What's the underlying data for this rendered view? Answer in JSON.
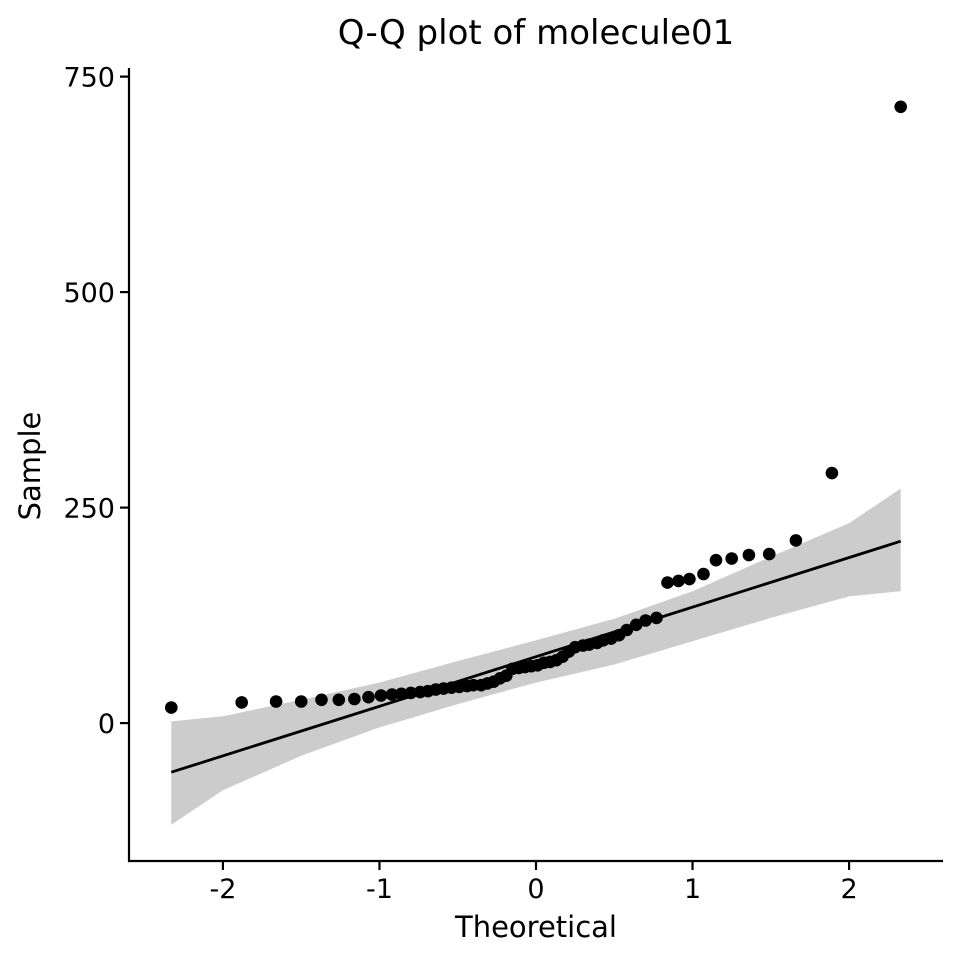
{
  "chart_data": {
    "type": "scatter",
    "title": "Q-Q plot of molecule01",
    "xlabel": "Theoretical",
    "ylabel": "Sample",
    "xlim": [
      -2.6,
      2.6
    ],
    "ylim": [
      -160,
      760
    ],
    "x_ticks": [
      -2,
      -1,
      0,
      1,
      2
    ],
    "x_tick_labels": [
      "-2",
      "-1",
      "0",
      "1",
      "2"
    ],
    "y_ticks": [
      0,
      250,
      500,
      750
    ],
    "y_tick_labels": [
      "0",
      "250",
      "500",
      "750"
    ],
    "grid": false,
    "legend": "none",
    "colors": {
      "points": "#000000",
      "line": "#000000",
      "band": "#cccccc",
      "axis": "#000000"
    },
    "points": [
      [
        -2.33,
        18
      ],
      [
        -1.88,
        24
      ],
      [
        -1.66,
        25
      ],
      [
        -1.5,
        25
      ],
      [
        -1.37,
        27
      ],
      [
        -1.26,
        27
      ],
      [
        -1.16,
        28
      ],
      [
        -1.07,
        30
      ],
      [
        -0.99,
        32
      ],
      [
        -0.92,
        33
      ],
      [
        -0.86,
        34
      ],
      [
        -0.8,
        35
      ],
      [
        -0.74,
        36
      ],
      [
        -0.69,
        37
      ],
      [
        -0.64,
        39
      ],
      [
        -0.59,
        40
      ],
      [
        -0.54,
        41
      ],
      [
        -0.49,
        42
      ],
      [
        -0.44,
        43
      ],
      [
        -0.4,
        44
      ],
      [
        -0.35,
        44
      ],
      [
        -0.31,
        46
      ],
      [
        -0.27,
        48
      ],
      [
        -0.23,
        52
      ],
      [
        -0.19,
        55
      ],
      [
        -0.15,
        63
      ],
      [
        -0.11,
        64
      ],
      [
        -0.07,
        65
      ],
      [
        -0.03,
        66
      ],
      [
        0.01,
        67
      ],
      [
        0.05,
        70
      ],
      [
        0.09,
        71
      ],
      [
        0.13,
        73
      ],
      [
        0.17,
        77
      ],
      [
        0.21,
        83
      ],
      [
        0.25,
        88
      ],
      [
        0.3,
        90
      ],
      [
        0.34,
        91
      ],
      [
        0.39,
        93
      ],
      [
        0.43,
        96
      ],
      [
        0.48,
        98
      ],
      [
        0.53,
        102
      ],
      [
        0.58,
        108
      ],
      [
        0.64,
        114
      ],
      [
        0.7,
        119
      ],
      [
        0.77,
        122
      ],
      [
        0.84,
        163
      ],
      [
        0.91,
        165
      ],
      [
        0.98,
        167
      ],
      [
        1.07,
        173
      ],
      [
        1.15,
        189
      ],
      [
        1.25,
        191
      ],
      [
        1.36,
        195
      ],
      [
        1.49,
        196
      ],
      [
        1.66,
        212
      ],
      [
        1.89,
        290
      ],
      [
        2.33,
        715
      ]
    ],
    "reference_line": {
      "x": [
        -2.33,
        2.33
      ],
      "y": [
        -57,
        211
      ]
    },
    "confidence_band": {
      "x": [
        -2.33,
        -2.0,
        -1.5,
        -1.0,
        -0.5,
        0.0,
        0.5,
        1.0,
        1.5,
        2.0,
        2.33
      ],
      "lower": [
        -118,
        -78,
        -38,
        -5,
        22,
        47,
        68,
        95,
        122,
        147,
        153
      ],
      "upper": [
        2,
        8,
        27,
        47,
        72,
        96,
        121,
        153,
        193,
        232,
        272
      ]
    }
  }
}
